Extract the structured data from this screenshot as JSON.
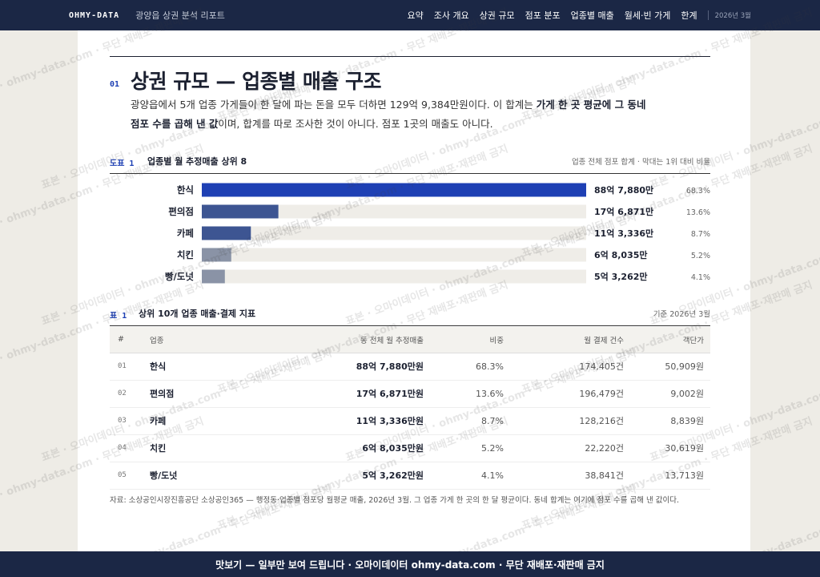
{
  "nav": {
    "brand": "OHMY-DATA",
    "subtitle": "광양읍 상권 분석 리포트",
    "links": [
      "요약",
      "조사 개요",
      "상권 규모",
      "점포 분포",
      "업종별 매출",
      "월세·빈 가게",
      "한계"
    ],
    "date": "2026년 3월"
  },
  "section": {
    "number": "01",
    "title": "상권 규모 — 업종별 매출 구조",
    "lead": [
      {
        "text": "광양읍에서 5개 업종 가게들이 한 달에 파는 돈을 모두 더하면 129억 9,384만원이다. 이 합계는 ",
        "bold": false
      },
      {
        "text": "가게 한 곳 평균에 그 동네 점포 수를 곱해 낸 값",
        "bold": true
      },
      {
        "text": "이며, 합계를 따로 조사한 것이 아니다. 점포 1곳의 매출도 아니다.",
        "bold": false
      }
    ]
  },
  "chart_data": {
    "type": "bar",
    "orientation": "horizontal",
    "label": "도표 1",
    "title": "업종별 월 추정매출 상위 8",
    "note": "업종 전체 점포 합계 · 막대는 1위 대비 비율",
    "categories": [
      "한식",
      "편의점",
      "카페",
      "치킨",
      "빵/도넛"
    ],
    "values": [
      887880,
      176871,
      113336,
      68035,
      53262
    ],
    "value_labels": [
      "88억 7,880만",
      "17억 6,871만",
      "11억 3,336만",
      "6억 8,035만",
      "5억 3,262만"
    ],
    "share_labels": [
      "68.3%",
      "13.6%",
      "8.7%",
      "5.2%",
      "4.1%"
    ],
    "colors": [
      "#1e40b4",
      "#3d5592",
      "#3d5592",
      "#8a93a6",
      "#8a93a6"
    ]
  },
  "table": {
    "label": "표 1",
    "title": "상위 10개 업종 매출·결제 지표",
    "note": "기준 2026년 3월",
    "headers": [
      "#",
      "업종",
      "동 전체 월 추정매출",
      "비중",
      "월 결제 건수",
      "객단가"
    ],
    "rows": [
      [
        "01",
        "한식",
        "88억 7,880만원",
        "68.3%",
        "174,405건",
        "50,909원"
      ],
      [
        "02",
        "편의점",
        "17억 6,871만원",
        "13.6%",
        "196,479건",
        "9,002원"
      ],
      [
        "03",
        "카페",
        "11억 3,336만원",
        "8.7%",
        "128,216건",
        "8,839원"
      ],
      [
        "04",
        "치킨",
        "6억 8,035만원",
        "5.2%",
        "22,220건",
        "30,619원"
      ],
      [
        "05",
        "빵/도넛",
        "5억 3,262만원",
        "4.1%",
        "38,841건",
        "13,713원"
      ]
    ],
    "source": "자료: 소상공인시장진흥공단 소상공인365 — 행정동·업종별 점포당 월평균 매출, 2026년 3월. 그 업종 가게 한 곳의 한 달 평균이다. 동네 합계는 여기에 점포 수를 곱해 낸 값이다."
  },
  "watermark": "표본 · 오마이데이터 · ohmy-data.com · 무단 재배포·재판매 금지",
  "footer": "맛보기 — 일부만 보여 드립니다 · 오마이데이터 ohmy-data.com · 무단 재배포·재판매 금지"
}
